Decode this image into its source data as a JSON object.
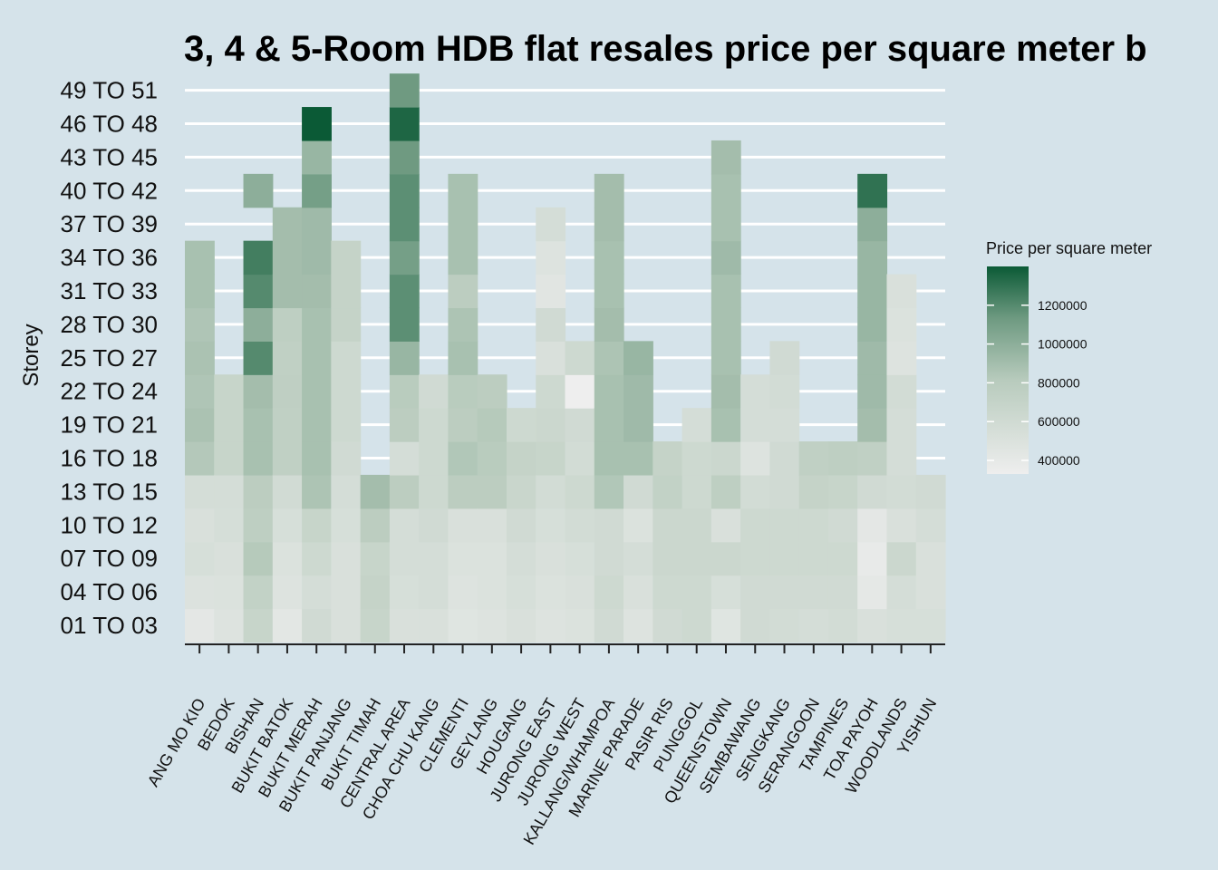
{
  "chart_data": {
    "type": "heatmap",
    "title": "3, 4 & 5-Room HDB flat resales price per square meter b",
    "xlabel": "",
    "ylabel": "Storey",
    "grid": "horizontal white gridlines",
    "legend": {
      "title": "Price per square meter",
      "position": "right",
      "ticks": [
        400000,
        600000,
        800000,
        1000000,
        1200000
      ],
      "range": [
        330000,
        1400000
      ],
      "low_color": "#eeeeee",
      "high_color": "#0b5a36"
    },
    "x": [
      "ANG MO KIO",
      "BEDOK",
      "BISHAN",
      "BUKIT BATOK",
      "BUKIT MERAH",
      "BUKIT PANJANG",
      "BUKIT TIMAH",
      "CENTRAL AREA",
      "CHOA CHU KANG",
      "CLEMENTI",
      "GEYLANG",
      "HOUGANG",
      "JURONG EAST",
      "JURONG WEST",
      "KALLANG/WHAMPOA",
      "MARINE PARADE",
      "PASIR RIS",
      "PUNGGOL",
      "QUEENSTOWN",
      "SEMBAWANG",
      "SENGKANG",
      "SERANGOON",
      "TAMPINES",
      "TOA PAYOH",
      "WOODLANDS",
      "YISHUN"
    ],
    "y": [
      "01 TO 03",
      "04 TO 06",
      "07 TO 09",
      "10 TO 12",
      "13 TO 15",
      "16 TO 18",
      "19 TO 21",
      "22 TO 24",
      "25 TO 27",
      "28 TO 30",
      "31 TO 33",
      "34 TO 36",
      "37 TO 39",
      "40 TO 42",
      "43 TO 45",
      "46 TO 48",
      "49 TO 51"
    ],
    "values": [
      [
        420000,
        490000,
        540000,
        520000,
        560000,
        830000,
        870000,
        850000,
        870000,
        850000,
        880000,
        880000,
        null,
        null,
        null,
        null,
        null
      ],
      [
        480000,
        500000,
        520000,
        550000,
        560000,
        680000,
        680000,
        680000,
        null,
        null,
        null,
        null,
        null,
        null,
        null,
        null,
        null
      ],
      [
        680000,
        720000,
        820000,
        760000,
        780000,
        880000,
        880000,
        900000,
        1200000,
        1000000,
        1200000,
        1250000,
        null,
        1000000,
        null,
        null,
        null
      ],
      [
        430000,
        480000,
        500000,
        540000,
        590000,
        740000,
        740000,
        750000,
        740000,
        760000,
        900000,
        900000,
        900000,
        null,
        null,
        null,
        null
      ],
      [
        600000,
        560000,
        620000,
        680000,
        860000,
        880000,
        880000,
        880000,
        880000,
        880000,
        900000,
        920000,
        920000,
        1100000,
        950000,
        1400000,
        null
      ],
      [
        520000,
        520000,
        520000,
        540000,
        560000,
        600000,
        620000,
        620000,
        620000,
        700000,
        700000,
        700000,
        null,
        null,
        null,
        null,
        null
      ],
      [
        680000,
        700000,
        680000,
        780000,
        900000,
        null,
        null,
        null,
        null,
        null,
        null,
        null,
        null,
        null,
        null,
        null,
        null
      ],
      [
        520000,
        540000,
        560000,
        560000,
        780000,
        560000,
        780000,
        800000,
        950000,
        1180000,
        1180000,
        1100000,
        1180000,
        1180000,
        1130000,
        1350000,
        1130000
      ],
      [
        520000,
        560000,
        560000,
        600000,
        620000,
        620000,
        620000,
        600000,
        null,
        null,
        null,
        null,
        null,
        null,
        null,
        null,
        null
      ],
      [
        460000,
        480000,
        500000,
        520000,
        780000,
        840000,
        780000,
        800000,
        880000,
        860000,
        780000,
        880000,
        880000,
        880000,
        null,
        null,
        null
      ],
      [
        480000,
        500000,
        500000,
        520000,
        780000,
        800000,
        820000,
        780000,
        null,
        null,
        null,
        null,
        null,
        null,
        null,
        null,
        null
      ],
      [
        520000,
        540000,
        560000,
        600000,
        660000,
        700000,
        620000,
        null,
        null,
        null,
        null,
        null,
        null,
        null,
        null,
        null,
        null
      ],
      [
        480000,
        500000,
        520000,
        540000,
        580000,
        680000,
        640000,
        620000,
        520000,
        600000,
        450000,
        480000,
        560000,
        null,
        null,
        null,
        null
      ],
      [
        500000,
        520000,
        540000,
        580000,
        620000,
        580000,
        600000,
        330000,
        620000,
        null,
        null,
        null,
        null,
        null,
        null,
        null,
        null
      ],
      [
        600000,
        620000,
        600000,
        600000,
        840000,
        880000,
        880000,
        880000,
        860000,
        900000,
        880000,
        880000,
        900000,
        900000,
        null,
        null,
        null
      ],
      [
        480000,
        520000,
        560000,
        500000,
        600000,
        880000,
        920000,
        920000,
        950000,
        null,
        null,
        null,
        null,
        null,
        null,
        null,
        null
      ],
      [
        600000,
        620000,
        640000,
        640000,
        720000,
        700000,
        null,
        null,
        null,
        null,
        null,
        null,
        null,
        null,
        null,
        null,
        null
      ],
      [
        620000,
        620000,
        640000,
        640000,
        620000,
        620000,
        560000,
        null,
        null,
        null,
        null,
        null,
        null,
        null,
        null,
        null,
        null
      ],
      [
        460000,
        540000,
        640000,
        520000,
        760000,
        640000,
        880000,
        900000,
        880000,
        880000,
        880000,
        920000,
        880000,
        880000,
        900000,
        null,
        null
      ],
      [
        600000,
        600000,
        620000,
        620000,
        580000,
        480000,
        560000,
        560000,
        null,
        null,
        null,
        null,
        null,
        null,
        null,
        null,
        null
      ],
      [
        580000,
        600000,
        620000,
        620000,
        600000,
        600000,
        560000,
        580000,
        600000,
        null,
        null,
        null,
        null,
        null,
        null,
        null,
        null
      ],
      [
        560000,
        600000,
        620000,
        620000,
        700000,
        740000,
        null,
        null,
        null,
        null,
        null,
        null,
        null,
        null,
        null,
        null,
        null
      ],
      [
        580000,
        600000,
        620000,
        600000,
        680000,
        760000,
        null,
        null,
        null,
        null,
        null,
        null,
        null,
        null,
        null,
        null,
        null
      ],
      [
        520000,
        410000,
        380000,
        420000,
        600000,
        740000,
        900000,
        920000,
        920000,
        950000,
        950000,
        950000,
        1000000,
        1300000,
        null,
        null,
        null
      ],
      [
        540000,
        560000,
        640000,
        520000,
        580000,
        560000,
        560000,
        580000,
        480000,
        500000,
        520000,
        null,
        null,
        null,
        null,
        null,
        null
      ],
      [
        540000,
        520000,
        520000,
        560000,
        600000,
        null,
        null,
        null,
        null,
        null,
        null,
        null,
        null,
        null,
        null,
        null,
        null
      ]
    ]
  }
}
